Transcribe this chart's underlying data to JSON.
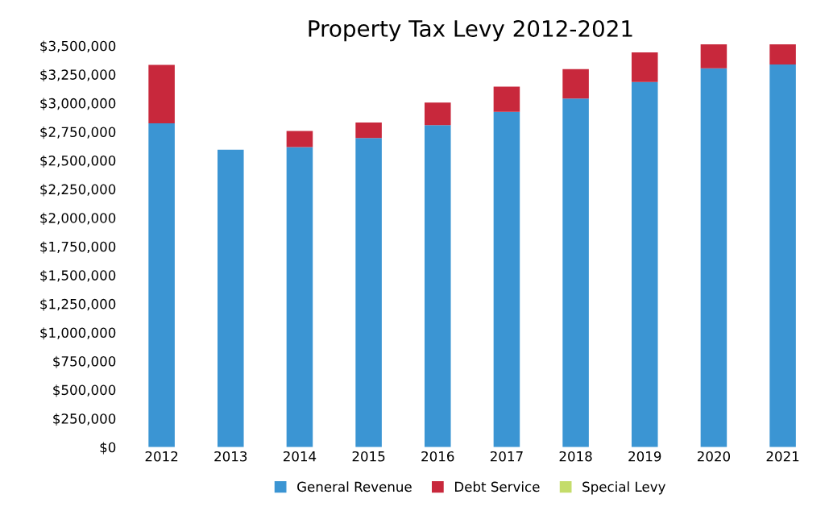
{
  "chart_data": {
    "type": "bar",
    "title": "Property Tax Levy 2012-2021",
    "stacked": true,
    "categories": [
      "2012",
      "2013",
      "2014",
      "2015",
      "2016",
      "2017",
      "2018",
      "2019",
      "2020",
      "2021"
    ],
    "series": [
      {
        "name": "General Revenue",
        "color": "#3b95d3",
        "values": [
          2824000,
          2594000,
          2617000,
          2696000,
          2808000,
          2924000,
          3040000,
          3184000,
          3303000,
          3337000
        ]
      },
      {
        "name": "Debt Service",
        "color": "#c8283c",
        "values": [
          509000,
          0,
          139000,
          135000,
          197000,
          220000,
          256000,
          258000,
          209000,
          175000
        ]
      },
      {
        "name": "Special Levy",
        "color": "#c4dc6a",
        "values": [
          0,
          0,
          0,
          0,
          0,
          0,
          0,
          0,
          0,
          0
        ]
      }
    ],
    "ylim": [
      0,
      3520000
    ],
    "yticks": [
      {
        "value": 0,
        "label": "$0"
      },
      {
        "value": 250000,
        "label": "$250,000"
      },
      {
        "value": 500000,
        "label": "$500,000"
      },
      {
        "value": 750000,
        "label": "$750,000"
      },
      {
        "value": 1000000,
        "label": "$1,000,000"
      },
      {
        "value": 1250000,
        "label": "$1,250,000"
      },
      {
        "value": 1500000,
        "label": "$1,500,000"
      },
      {
        "value": 1750000,
        "label": "$1,750,000"
      },
      {
        "value": 2000000,
        "label": "$2,000,000"
      },
      {
        "value": 2250000,
        "label": "$2,250,000"
      },
      {
        "value": 2500000,
        "label": "$2,500,000"
      },
      {
        "value": 2750000,
        "label": "$2,750,000"
      },
      {
        "value": 3000000,
        "label": "$3,000,000"
      },
      {
        "value": 3250000,
        "label": "$3,250,000"
      },
      {
        "value": 3500000,
        "label": "$3,500,000"
      }
    ],
    "grid": false,
    "legend": "bottom"
  }
}
